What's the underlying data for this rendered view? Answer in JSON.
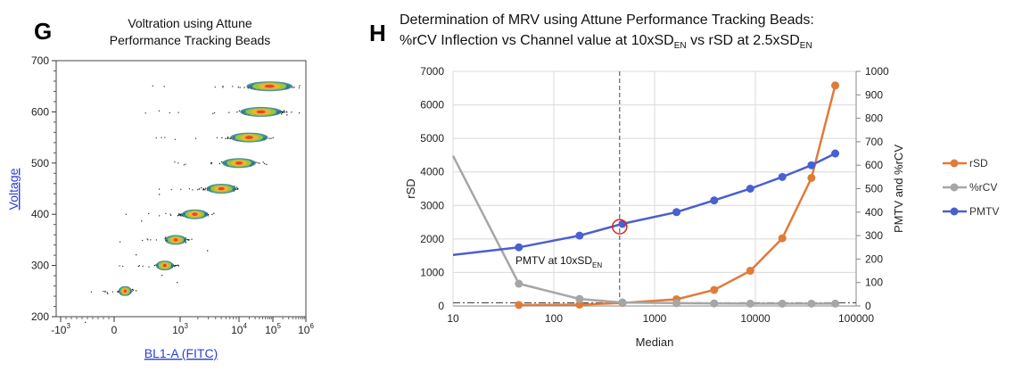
{
  "panel_g": {
    "letter": "G",
    "title_line1": "Voltration using Attune",
    "title_line2": "Performance Tracking Beads",
    "chart_data": {
      "type": "scatter",
      "title": "Voltration using Attune Performance Tracking Beads",
      "xlabel": "BL1-A (FITC)",
      "ylabel": "Voltage",
      "x_scale": "biexponential",
      "ylim": [
        200,
        700
      ],
      "x_ticks": [
        "-10",
        "0",
        "10",
        "10",
        "10",
        "10"
      ],
      "x_tick_exponents": [
        "3",
        "",
        "3",
        "4",
        "5",
        "6"
      ],
      "y_ticks": [
        200,
        300,
        400,
        500,
        600,
        700
      ],
      "populations": [
        {
          "voltage": 250,
          "center_log": 0.5
        },
        {
          "voltage": 300,
          "center_log": 2.3
        },
        {
          "voltage": 350,
          "center_log": 2.8
        },
        {
          "voltage": 400,
          "center_log": 3.25
        },
        {
          "voltage": 450,
          "center_log": 3.7
        },
        {
          "voltage": 500,
          "center_log": 4.0
        },
        {
          "voltage": 550,
          "center_log": 4.3
        },
        {
          "voltage": 600,
          "center_log": 4.65
        },
        {
          "voltage": 650,
          "center_log": 4.9
        }
      ]
    }
  },
  "panel_h": {
    "letter": "H",
    "title_line1": "Determination of MRV using Attune Performance Tracking Beads:",
    "title_line2_parts": [
      "%rCV Inflection vs Channel value at 10xSD",
      "EN",
      " vs rSD at 2.5xSD",
      "EN"
    ],
    "annotation_parts": [
      "PMTV at 10xSD",
      "EN"
    ],
    "chart_data": {
      "type": "line",
      "title": "Determination of MRV using Attune Performance Tracking Beads: %rCV Inflection vs Channel value at 10xSDEN vs rSD at 2.5xSDEN",
      "xlabel": "Median",
      "ylabel": "rSD",
      "y2label": "PMTV and %rCV",
      "x_scale": "log",
      "xlim": [
        10,
        100000
      ],
      "x_ticks": [
        "10",
        "100",
        "1000",
        "10000",
        "100000"
      ],
      "ylim": [
        0,
        7000
      ],
      "y_ticks": [
        "0",
        "1000",
        "2000",
        "3000",
        "4000",
        "5000",
        "6000",
        "7000"
      ],
      "y2lim": [
        0,
        1000
      ],
      "y2_ticks": [
        "0",
        "100",
        "200",
        "300",
        "400",
        "500",
        "600",
        "700",
        "800",
        "900",
        "1000"
      ],
      "vline_x": 450,
      "hline_y2": 14,
      "circle_point": {
        "x": 450,
        "y2": 338
      },
      "legend_position": "right",
      "series": [
        {
          "name": "rSD",
          "color": "#e07b39",
          "axis": "left",
          "x": [
            45,
            180,
            480,
            1650,
            3900,
            8900,
            18500,
            36000,
            62000
          ],
          "y": [
            30,
            40,
            90,
            200,
            480,
            1050,
            2020,
            3820,
            6580
          ]
        },
        {
          "name": "%rCV",
          "color": "#a6a6a6",
          "axis": "right",
          "x": [
            10,
            45,
            180,
            480,
            1650,
            3900,
            8900,
            18500,
            36000,
            62000
          ],
          "y": [
            640,
            95,
            30,
            15,
            12,
            11,
            10,
            10,
            10,
            10
          ]
        },
        {
          "name": "PMTV",
          "color": "#4a5fd0",
          "axis": "right",
          "x": [
            10,
            45,
            180,
            480,
            1650,
            3900,
            8900,
            18500,
            36000,
            62000
          ],
          "y": [
            218,
            250,
            300,
            350,
            400,
            450,
            500,
            550,
            600,
            650
          ]
        }
      ]
    }
  }
}
